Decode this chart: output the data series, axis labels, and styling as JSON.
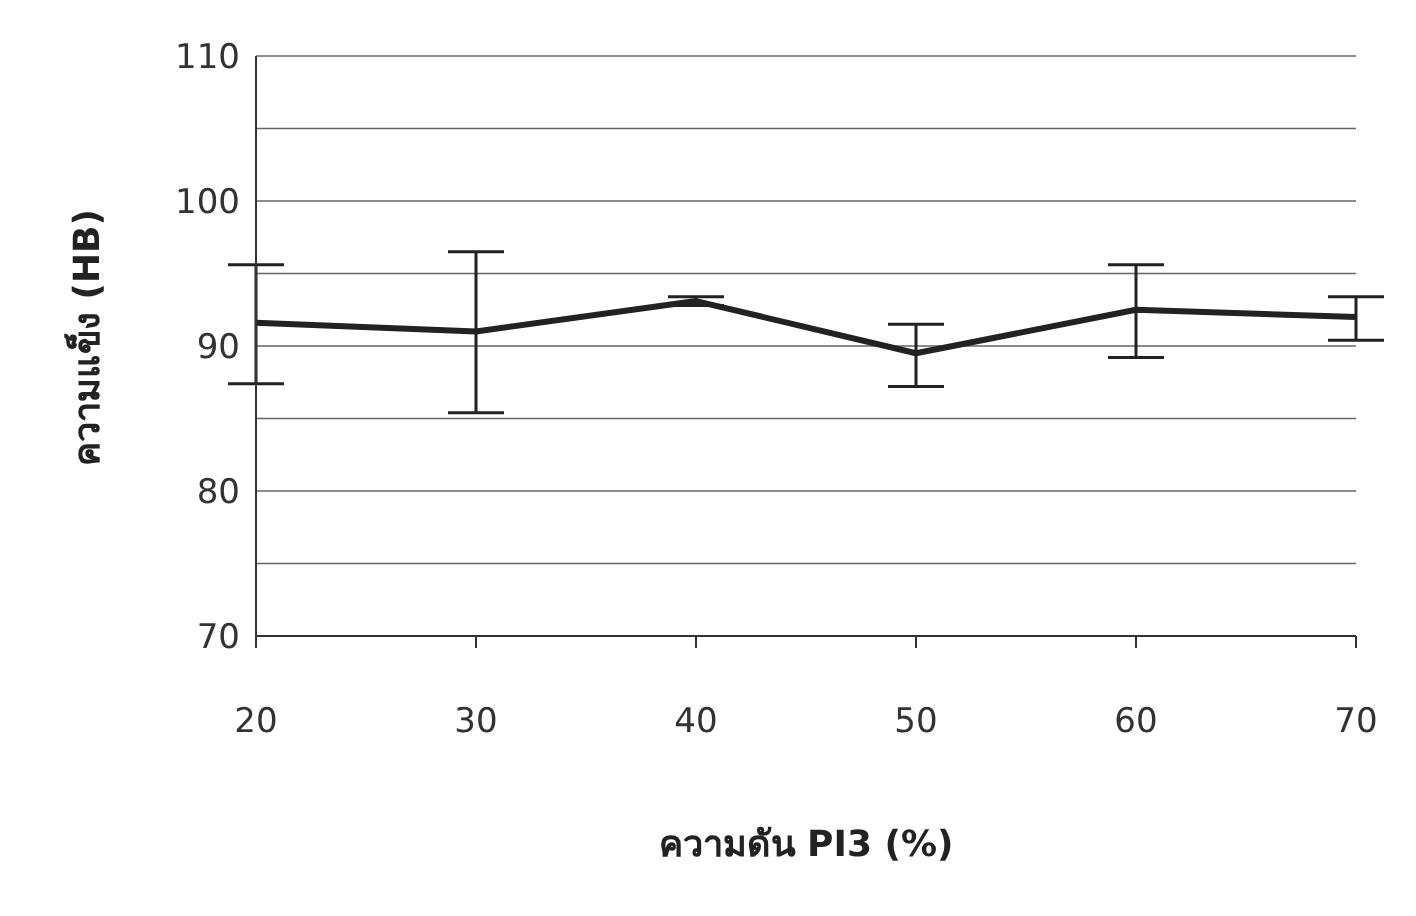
{
  "chart_data": {
    "type": "line",
    "xlabel": "ความดัน PI3 (%)",
    "ylabel": "ความแข็ง (HB)",
    "categories": [
      "20",
      "30",
      "40",
      "50",
      "60",
      "70"
    ],
    "series": [
      {
        "color": "#222222",
        "values": [
          91.6,
          91.0,
          93.1,
          89.5,
          92.5,
          92.0
        ],
        "errors": [
          [
            87.4,
            95.6
          ],
          [
            85.4,
            96.5
          ],
          [
            92.8,
            93.4
          ],
          [
            87.2,
            91.5
          ],
          [
            89.2,
            95.6
          ],
          [
            90.4,
            93.4
          ]
        ]
      }
    ],
    "ylim": [
      70,
      110
    ],
    "yticks": [
      70,
      {
        "value": 75,
        "label": null
      },
      80,
      {
        "value": 85,
        "label": null
      },
      90,
      {
        "value": 95,
        "label": null
      },
      100,
      {
        "value": 105,
        "label": null
      },
      110
    ],
    "grid": "y",
    "marker": "none",
    "line_style": "solid"
  }
}
